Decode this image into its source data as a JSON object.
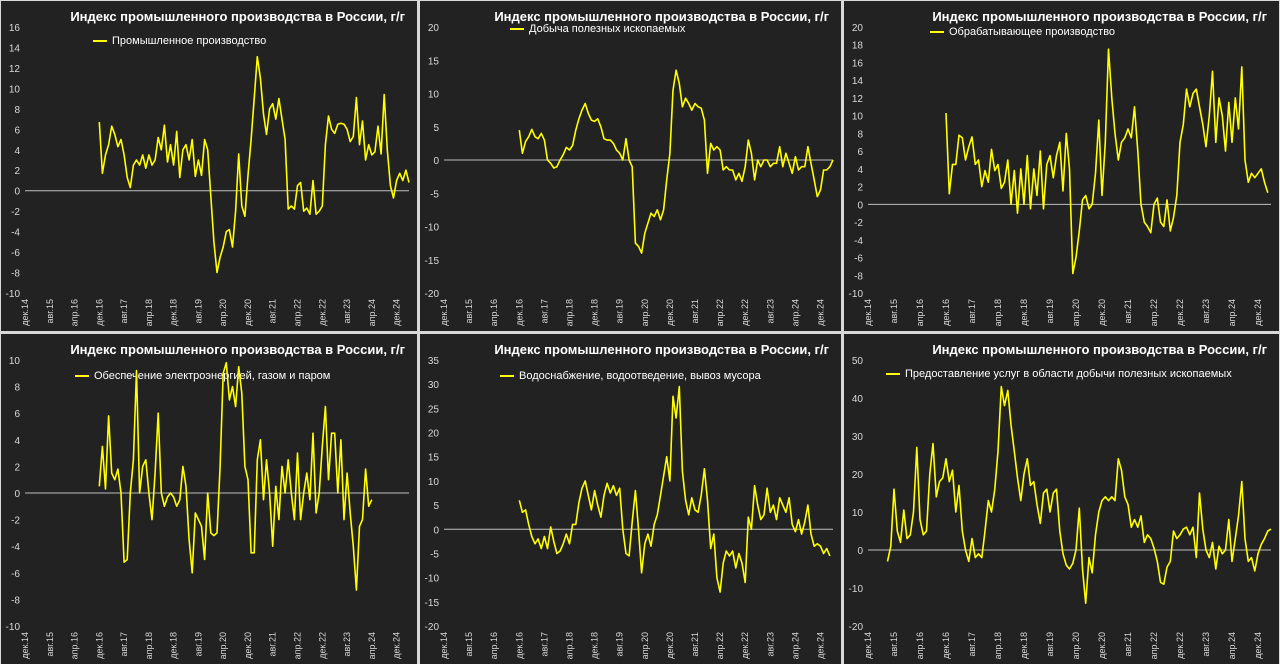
{
  "chart_data": [
    {
      "type": "line",
      "title": "Индекс промышленного производства в России, г/г",
      "series_name": "Промышленное производство",
      "ylim": [
        -10,
        16
      ],
      "yticks": [
        -10,
        -8,
        -6,
        -4,
        -2,
        0,
        2,
        4,
        6,
        8,
        10,
        12,
        14,
        16
      ],
      "xticks": [
        "дек.14",
        "авг.15",
        "апр.16",
        "дек.16",
        "авг.17",
        "апр.18",
        "дек.18",
        "авг.19",
        "апр.20",
        "дек.20",
        "авг.21",
        "апр.22",
        "дек.22",
        "авг.23",
        "апр.24",
        "дек.24"
      ],
      "xlim": [
        0,
        124
      ],
      "x_start": 24,
      "values": [
        6.7,
        1.7,
        3.5,
        4.5,
        6.3,
        5.5,
        4.3,
        5.0,
        3.5,
        1.3,
        0.3,
        2.5,
        3.0,
        2.5,
        3.5,
        2.2,
        3.5,
        2.5,
        3.0,
        5.2,
        4.0,
        6.4,
        2.8,
        4.5,
        2.5,
        5.8,
        1.3,
        4.0,
        4.5,
        3.0,
        5.0,
        1.4,
        3.0,
        1.5,
        5.0,
        4.0,
        -0.5,
        -5.0,
        -8.0,
        -6.5,
        -5.5,
        -4.0,
        -3.8,
        -5.5,
        -2.0,
        3.6,
        -1.5,
        -2.5,
        1.5,
        5.0,
        9.0,
        13.1,
        11.0,
        7.5,
        5.5,
        8.0,
        8.5,
        7.0,
        9.0,
        7.0,
        5.0,
        -1.8,
        -1.5,
        -1.8,
        0.5,
        0.8,
        -2.0,
        -1.7,
        -2.3,
        1.0,
        -2.3,
        -2.0,
        -1.5,
        4.5,
        7.3,
        6.0,
        5.6,
        6.5,
        6.6,
        6.5,
        6.0,
        4.8,
        5.3,
        9.1,
        4.5,
        6.8,
        3.0,
        4.5,
        3.5,
        3.8,
        6.3,
        3.6,
        9.4,
        4.0,
        0.5,
        -0.7,
        1.0,
        1.7,
        1.0,
        2.0,
        0.8
      ]
    },
    {
      "type": "line",
      "title": "Индекс промышленного производства в России, г/г",
      "series_name": "Добыча полезных ископаемых",
      "ylim": [
        -20,
        20
      ],
      "yticks": [
        -20,
        -15,
        -10,
        -5,
        0,
        5,
        10,
        15,
        20
      ],
      "xticks": [
        "дек.14",
        "авг.15",
        "апр.16",
        "дек.16",
        "авг.17",
        "апр.18",
        "дек.18",
        "авг.19",
        "апр.20",
        "дек.20",
        "авг.21",
        "апр.22",
        "дек.22",
        "авг.23",
        "апр.24",
        "дек.24"
      ],
      "xlim": [
        0,
        124
      ],
      "x_start": 24,
      "values": [
        4.5,
        1.0,
        2.8,
        3.5,
        4.6,
        3.5,
        3.2,
        4.0,
        3.0,
        0.0,
        -0.5,
        -1.2,
        -1.0,
        0.0,
        0.8,
        1.9,
        1.5,
        2.2,
        4.5,
        6.2,
        7.5,
        8.5,
        7.0,
        6.0,
        5.8,
        6.2,
        5.0,
        3.2,
        3.0,
        3.0,
        2.5,
        1.5,
        1.0,
        0.0,
        3.2,
        0.0,
        -1.0,
        -12.5,
        -13.0,
        -14.0,
        -11.0,
        -9.5,
        -8.0,
        -8.5,
        -7.5,
        -9.0,
        -7.5,
        -3.0,
        1.0,
        10.5,
        13.5,
        11.5,
        8.0,
        9.3,
        8.5,
        7.5,
        8.5,
        8.0,
        7.8,
        6.0,
        -2.0,
        2.5,
        1.5,
        2.0,
        1.5,
        -1.5,
        -1.0,
        -1.5,
        -1.5,
        -3.0,
        -2.0,
        -3.2,
        -1.0,
        3.0,
        1.0,
        -3.0,
        0.0,
        -1.0,
        0.0,
        0.0,
        -1.0,
        -0.5,
        -0.5,
        2.0,
        -1.0,
        1.0,
        -0.5,
        -2.0,
        0.5,
        -1.5,
        -1.0,
        -1.0,
        2.0,
        -0.5,
        -3.0,
        -5.5,
        -4.5,
        -1.5,
        -1.5,
        -1.0,
        0.0
      ]
    },
    {
      "type": "line",
      "title": "Индекс промышленного производства в России, г/г",
      "series_name": "Обрабатывающее производство",
      "ylim": [
        -10,
        20
      ],
      "yticks": [
        -10,
        -8,
        -6,
        -4,
        -2,
        0,
        2,
        4,
        6,
        8,
        10,
        12,
        14,
        16,
        18,
        20
      ],
      "xticks": [
        "дек.14",
        "авг.15",
        "апр.16",
        "дек.16",
        "авг.17",
        "апр.18",
        "дек.18",
        "авг.19",
        "апр.20",
        "дек.20",
        "авг.21",
        "апр.22",
        "дек.22",
        "авг.23",
        "апр.24",
        "дек.24"
      ],
      "xlim": [
        0,
        124
      ],
      "x_start": 24,
      "values": [
        10.3,
        1.2,
        4.5,
        4.5,
        7.8,
        7.5,
        5.0,
        6.5,
        7.6,
        4.5,
        5.0,
        2.0,
        3.8,
        2.5,
        6.2,
        3.8,
        4.5,
        1.8,
        2.5,
        5.0,
        0.0,
        3.8,
        -1.0,
        4.0,
        0.0,
        5.5,
        -0.5,
        4.0,
        1.0,
        6.0,
        -0.5,
        4.5,
        5.5,
        3.0,
        5.5,
        7.0,
        1.5,
        8.0,
        4.0,
        -7.8,
        -6.0,
        -3.0,
        0.5,
        1.0,
        -0.5,
        0.0,
        3.5,
        9.5,
        1.0,
        7.0,
        17.5,
        12.0,
        8.0,
        5.0,
        7.0,
        7.5,
        8.5,
        7.5,
        11.0,
        6.0,
        0.0,
        -2.0,
        -2.5,
        -3.2,
        0.0,
        0.7,
        -2.0,
        -2.5,
        0.5,
        -3.0,
        -1.5,
        1.0,
        7.0,
        9.0,
        13.0,
        11.0,
        12.5,
        13.0,
        11.0,
        9.0,
        6.5,
        10.0,
        15.0,
        7.0,
        12.0,
        10.0,
        6.0,
        11.5,
        7.0,
        12.0,
        8.5,
        15.5,
        5.0,
        2.5,
        3.5,
        3.0,
        3.5,
        4.0,
        2.5,
        1.3
      ]
    },
    {
      "type": "line",
      "title": "Индекс промышленного производства в России, г/г",
      "series_name": "Обеспечение электроэнергией, газом и паром",
      "ylim": [
        -10,
        10
      ],
      "yticks": [
        -10,
        -8,
        -6,
        -4,
        -2,
        0,
        2,
        4,
        6,
        8,
        10
      ],
      "xticks": [
        "дек.14",
        "авг.15",
        "апр.16",
        "дек.16",
        "авг.17",
        "апр.18",
        "дек.18",
        "авг.19",
        "апр.20",
        "дек.20",
        "авг.21",
        "апр.22",
        "дек.22",
        "авг.23",
        "апр.24",
        "дек.24"
      ],
      "xlim": [
        0,
        124
      ],
      "x_start": 24,
      "values": [
        0.5,
        3.5,
        0.3,
        5.8,
        1.5,
        1.0,
        1.8,
        0.0,
        -5.2,
        -5.0,
        0.0,
        2.5,
        9.2,
        0.0,
        2.0,
        2.5,
        0.0,
        -2.0,
        1.5,
        6.0,
        0.0,
        -1.0,
        -0.3,
        0.0,
        -0.3,
        -1.0,
        -0.5,
        2.0,
        0.5,
        -3.5,
        -6.0,
        -1.5,
        -2.0,
        -2.5,
        -5.0,
        0.0,
        -3.0,
        -3.2,
        -3.0,
        2.0,
        9.0,
        9.8,
        7.0,
        8.0,
        6.5,
        9.5,
        7.5,
        2.0,
        1.0,
        -4.5,
        -4.5,
        2.5,
        4.0,
        -0.5,
        2.5,
        0.0,
        -4.0,
        0.5,
        -2.0,
        2.0,
        0.0,
        2.5,
        0.0,
        -2.0,
        3.0,
        -2.0,
        0.0,
        1.5,
        -0.5,
        4.5,
        -1.5,
        0.0,
        3.5,
        6.5,
        1.0,
        4.5,
        4.5,
        0.0,
        4.0,
        -2.0,
        1.5,
        -1.5,
        -4.0,
        -7.3,
        -2.5,
        -2.0,
        1.8,
        -1.0,
        -0.5
      ]
    },
    {
      "type": "line",
      "title": "Индекс промышленного производства в России, г/г",
      "series_name": "Водоснабжение, водоотведение, вывоз мусора",
      "ylim": [
        -20,
        35
      ],
      "yticks": [
        -20,
        -15,
        -10,
        -5,
        0,
        5,
        10,
        15,
        20,
        25,
        30,
        35
      ],
      "xticks": [
        "дек.14",
        "авг.15",
        "апр.16",
        "дек.16",
        "авг.17",
        "апр.18",
        "дек.18",
        "авг.19",
        "апр.20",
        "дек.20",
        "авг.21",
        "апр.22",
        "дек.22",
        "авг.23",
        "апр.24",
        "дек.24"
      ],
      "xlim": [
        0,
        124
      ],
      "x_start": 24,
      "values": [
        6.0,
        3.5,
        4.0,
        1.0,
        -1.5,
        -3.0,
        -2.0,
        -4.0,
        -1.5,
        -4.0,
        0.5,
        -2.5,
        -5.0,
        -4.5,
        -3.0,
        -1.0,
        -3.0,
        1.0,
        1.0,
        5.5,
        8.5,
        10.0,
        7.0,
        4.0,
        8.0,
        5.0,
        2.5,
        7.0,
        9.5,
        7.5,
        9.0,
        7.0,
        8.5,
        0.0,
        -5.0,
        -5.5,
        1.5,
        8.0,
        0.0,
        -9.0,
        -3.0,
        -1.0,
        -3.5,
        1.0,
        3.0,
        7.0,
        11.0,
        15.0,
        10.0,
        27.5,
        23.0,
        29.5,
        12.0,
        6.0,
        3.0,
        6.5,
        4.0,
        3.5,
        7.0,
        12.5,
        6.0,
        -4.0,
        -1.0,
        -10.0,
        -13.0,
        -7.0,
        -4.5,
        -5.5,
        -4.5,
        -8.0,
        -5.0,
        -7.0,
        -11.0,
        2.5,
        0.0,
        9.0,
        5.0,
        2.0,
        3.0,
        8.5,
        3.5,
        5.0,
        2.0,
        6.5,
        5.0,
        3.5,
        6.5,
        1.0,
        -0.5,
        2.0,
        -1.0,
        1.5,
        5.0,
        -1.0,
        -3.5,
        -3.0,
        -3.5,
        -5.0,
        -4.0,
        -5.5
      ]
    },
    {
      "type": "line",
      "title": "Индекс промышленного производства в России, г/г",
      "series_name": "Предоставление услуг в области добычи полезных ископаемых",
      "ylim": [
        -20,
        50
      ],
      "yticks": [
        -20,
        -10,
        0,
        10,
        20,
        30,
        40,
        50
      ],
      "xticks": [
        "дек.14",
        "авг.15",
        "апр.16",
        "дек.16",
        "авг.17",
        "апр.18",
        "дек.18",
        "авг.19",
        "апр.20",
        "дек.20",
        "авг.21",
        "апр.22",
        "дек.22",
        "авг.23",
        "апр.24",
        "дек.24"
      ],
      "xlim": [
        0,
        124
      ],
      "x_start": 6,
      "values": [
        -3.0,
        1.0,
        16.0,
        5.0,
        2.0,
        10.5,
        3.0,
        4.0,
        10.0,
        27.0,
        8.0,
        4.0,
        5.0,
        20.0,
        28.0,
        14.0,
        18.0,
        19.0,
        24.0,
        18.0,
        21.0,
        10.0,
        17.0,
        5.0,
        0.0,
        -3.0,
        3.0,
        -2.0,
        -1.0,
        -2.0,
        5.0,
        13.0,
        10.0,
        16.0,
        26.0,
        43.0,
        38.0,
        42.0,
        33.0,
        26.0,
        19.0,
        13.0,
        20.0,
        24.0,
        17.0,
        18.0,
        12.0,
        7.0,
        15.0,
        16.0,
        10.0,
        15.0,
        16.0,
        5.0,
        -1.0,
        -4.0,
        -5.0,
        -3.5,
        0.0,
        11.0,
        -5.0,
        -14.0,
        -2.0,
        -6.0,
        4.0,
        10.0,
        13.0,
        14.0,
        13.0,
        14.0,
        13.0,
        24.0,
        21.0,
        14.0,
        12.0,
        6.0,
        8.0,
        6.0,
        9.0,
        2.0,
        4.0,
        3.0,
        0.5,
        -3.0,
        -8.5,
        -9.0,
        -4.5,
        -3.0,
        5.0,
        3.0,
        4.0,
        5.5,
        6.0,
        4.0,
        6.0,
        -2.0,
        15.0,
        5.5,
        0.0,
        -2.0,
        2.0,
        -5.0,
        1.0,
        -1.0,
        0.0,
        8.0,
        -3.0,
        3.0,
        9.0,
        18.0,
        3.0,
        -3.0,
        -2.0,
        -5.5,
        -1.0,
        1.5,
        3.0,
        5.0,
        5.5
      ]
    }
  ],
  "style": {
    "line_color": "#ffff00",
    "background": "#222222",
    "axis_text": "#d9d9d9",
    "zero_line": "#bfbfbf"
  }
}
